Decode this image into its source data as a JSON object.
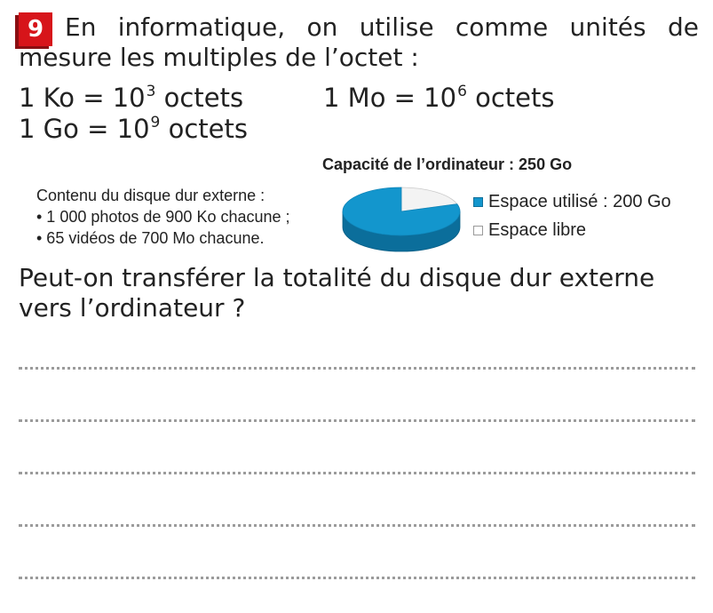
{
  "exercise": {
    "number": "9",
    "intro_words": [
      "En",
      "informatique,",
      "on",
      "utilise",
      "comme",
      "unités",
      "de"
    ],
    "intro_line2": "mesure les multiples de l’octet :"
  },
  "formulas": {
    "ko": {
      "prefix": "1 Ko = 10",
      "exp": "3",
      "suffix": " octets"
    },
    "mo": {
      "prefix": "1 Mo = 10",
      "exp": "6",
      "suffix": " octets"
    },
    "go": {
      "prefix": "1 Go = 10",
      "exp": "9",
      "suffix": " octets"
    }
  },
  "disk": {
    "title": "Contenu du disque dur externe :",
    "items": [
      "• 1 000 photos de 900 Ko chacune ;",
      "• 65 vidéos de 700 Mo chacune."
    ]
  },
  "chart_data": {
    "type": "pie",
    "title": "Capacité de l’ordinateur : 250 Go",
    "total": 250,
    "slices": [
      {
        "label": "Espace utilisé : 200 Go",
        "value": 200,
        "color": "#1396cd"
      },
      {
        "label": "Espace libre",
        "value": 50,
        "color": "#f3f3f3"
      }
    ],
    "legend_position": "right"
  },
  "question": "Peut-on transférer la totalité du disque dur externe vers l’ordinateur ?"
}
